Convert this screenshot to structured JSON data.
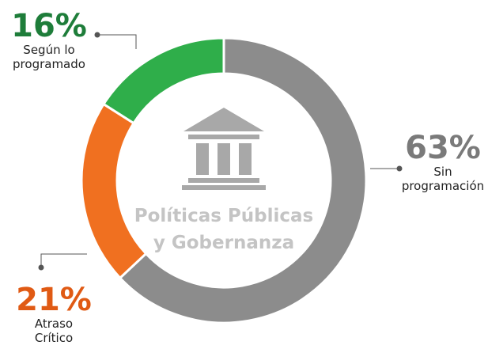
{
  "chart_data": {
    "type": "pie",
    "donut": true,
    "center_label": [
      "Políticas Públicas",
      "y Gobernanza"
    ],
    "categories": [
      "Sin programación",
      "Atraso Crítico",
      "Según lo programado"
    ],
    "values": [
      63,
      21,
      16
    ],
    "value_labels": [
      "63%",
      "21%",
      "16%"
    ],
    "colors": [
      "#8c8c8c",
      "#f07020",
      "#2fae4a"
    ]
  }
}
